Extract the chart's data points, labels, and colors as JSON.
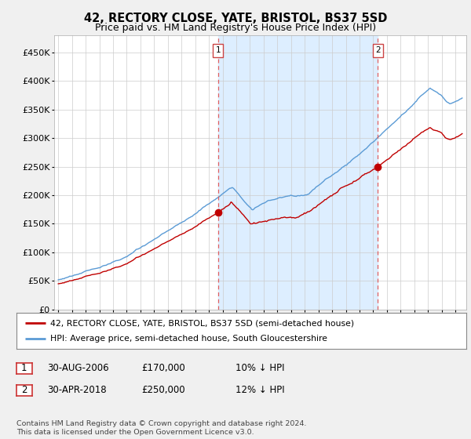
{
  "title": "42, RECTORY CLOSE, YATE, BRISTOL, BS37 5SD",
  "subtitle": "Price paid vs. HM Land Registry's House Price Index (HPI)",
  "legend_line1": "42, RECTORY CLOSE, YATE, BRISTOL, BS37 5SD (semi-detached house)",
  "legend_line2": "HPI: Average price, semi-detached house, South Gloucestershire",
  "footnote": "Contains HM Land Registry data © Crown copyright and database right 2024.\nThis data is licensed under the Open Government Licence v3.0.",
  "sale1_date": "30-AUG-2006",
  "sale1_price": "£170,000",
  "sale1_hpi": "10% ↓ HPI",
  "sale2_date": "30-APR-2018",
  "sale2_price": "£250,000",
  "sale2_hpi": "12% ↓ HPI",
  "hpi_color": "#5b9bd5",
  "price_color": "#c00000",
  "vline_color": "#e06060",
  "shade_color": "#ddeeff",
  "background_color": "#f0f0f0",
  "plot_bg_color": "#ffffff",
  "ylim": [
    0,
    480000
  ],
  "yticks": [
    0,
    50000,
    100000,
    150000,
    200000,
    250000,
    300000,
    350000,
    400000,
    450000
  ],
  "sale1_x": 2006.667,
  "sale2_x": 2018.333,
  "xstart": 1995.0,
  "xend": 2024.5
}
